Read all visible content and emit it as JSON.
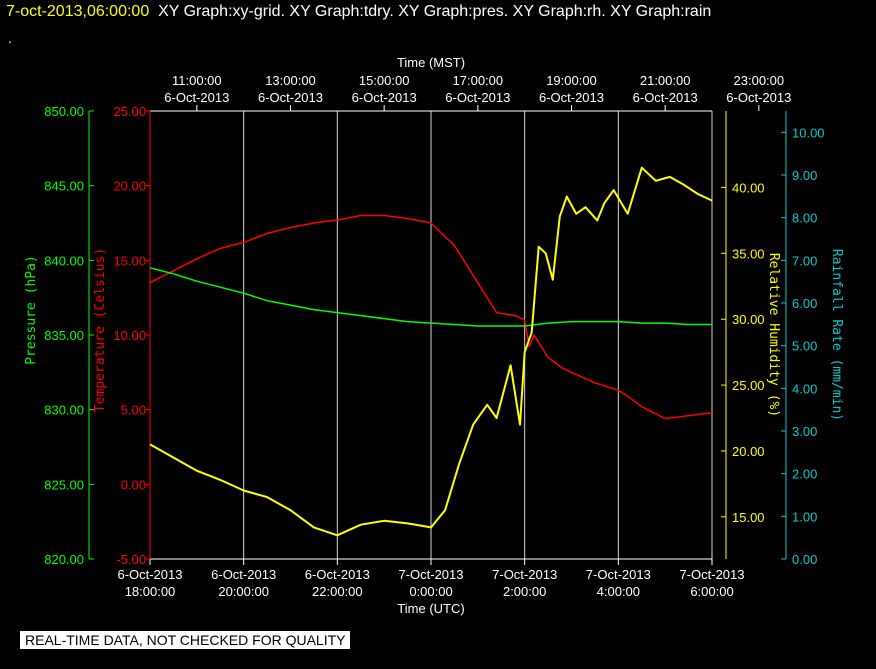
{
  "header": {
    "timestamp": "7-oct-2013,06:00:00",
    "titles": "XY Graph:xy-grid.  XY Graph:tdry.  XY Graph:pres.  XY Graph:rh.  XY Graph:rain",
    "dot": "."
  },
  "footer": {
    "notice": "REAL-TIME DATA, NOT CHECKED FOR QUALITY"
  },
  "colors": {
    "background": "#000000",
    "grid": "#ffffff",
    "pressure": "#00ff00",
    "temperature": "#ff0000",
    "humidity": "#ffff00",
    "rainfall": "#00cccc"
  },
  "chart_data": {
    "type": "line",
    "top_axis": {
      "label": "Time (MST)",
      "ticks": [
        {
          "time": "11:00:00",
          "date": "6-Oct-2013"
        },
        {
          "time": "13:00:00",
          "date": "6-Oct-2013"
        },
        {
          "time": "15:00:00",
          "date": "6-Oct-2013"
        },
        {
          "time": "17:00:00",
          "date": "6-Oct-2013"
        },
        {
          "time": "19:00:00",
          "date": "6-Oct-2013"
        },
        {
          "time": "21:00:00",
          "date": "6-Oct-2013"
        },
        {
          "time": "23:00:00",
          "date": "6-Oct-2013"
        }
      ]
    },
    "bottom_axis": {
      "label": "Time (UTC)",
      "ticks": [
        {
          "date": "6-Oct-2013",
          "time": "18:00:00"
        },
        {
          "date": "6-Oct-2013",
          "time": "20:00:00"
        },
        {
          "date": "6-Oct-2013",
          "time": "22:00:00"
        },
        {
          "date": "7-Oct-2013",
          "time": "0:00:00"
        },
        {
          "date": "7-Oct-2013",
          "time": "2:00:00"
        },
        {
          "date": "7-Oct-2013",
          "time": "4:00:00"
        },
        {
          "date": "7-Oct-2013",
          "time": "6:00:00"
        }
      ],
      "xlim": [
        0,
        12
      ]
    },
    "pressure_axis": {
      "label": "Pressure (hPa)",
      "ylim": [
        820,
        850
      ],
      "ticks": [
        "820.00",
        "825.00",
        "830.00",
        "835.00",
        "840.00",
        "845.00",
        "850.00"
      ]
    },
    "temperature_axis": {
      "label": "Temperature (Celsius)",
      "ylim": [
        -5,
        25
      ],
      "ticks": [
        "-5.00",
        "0.00",
        "5.00",
        "10.00",
        "15.00",
        "20.00",
        "25.00"
      ]
    },
    "humidity_axis": {
      "label": "Relative Humidity (%)",
      "ylim": [
        11.8,
        45.8
      ],
      "ticks": [
        "15.00",
        "20.00",
        "25.00",
        "30.00",
        "35.00",
        "40.00"
      ]
    },
    "rainfall_axis": {
      "label": "Rainfall Rate (mm/min)",
      "ylim": [
        0,
        10.5
      ],
      "ticks": [
        "0.00",
        "1.00",
        "2.00",
        "3.00",
        "4.00",
        "5.00",
        "6.00",
        "7.00",
        "8.00",
        "9.00",
        "10.00"
      ]
    },
    "series": [
      {
        "name": "tdry",
        "axis": "temperature",
        "color": "#ff0000",
        "x": [
          0,
          0.5,
          1,
          1.5,
          2,
          2.5,
          3,
          3.5,
          4,
          4.5,
          5,
          5.5,
          6,
          6.5,
          7,
          7.4,
          7.8,
          8.0,
          8.1,
          8.2,
          8.5,
          8.8,
          9,
          9.5,
          10,
          10.2,
          10.5,
          11,
          11.5,
          12
        ],
        "y": [
          13.5,
          14.3,
          15.1,
          15.8,
          16.2,
          16.8,
          17.2,
          17.5,
          17.7,
          18.0,
          18.0,
          17.8,
          17.5,
          16.0,
          13.5,
          11.5,
          11.3,
          11.0,
          9.2,
          10.0,
          8.5,
          7.8,
          7.5,
          6.8,
          6.3,
          5.9,
          5.2,
          4.4,
          4.6,
          4.8
        ]
      },
      {
        "name": "pres",
        "axis": "pressure",
        "color": "#00ff00",
        "x": [
          0,
          0.5,
          1,
          1.5,
          2,
          2.5,
          3,
          3.5,
          4,
          4.5,
          5,
          5.5,
          6,
          6.5,
          7,
          7.5,
          8,
          8.5,
          9,
          9.5,
          10,
          10.5,
          11,
          11.5,
          12
        ],
        "y": [
          839.5,
          839.1,
          838.6,
          838.2,
          837.8,
          837.3,
          837.0,
          836.7,
          836.5,
          836.3,
          836.1,
          835.9,
          835.8,
          835.7,
          835.6,
          835.6,
          835.6,
          835.8,
          835.9,
          835.9,
          835.9,
          835.8,
          835.8,
          835.7,
          835.7
        ]
      },
      {
        "name": "rh",
        "axis": "humidity",
        "color": "#ffff00",
        "x": [
          0,
          0.5,
          1,
          1.5,
          2,
          2.5,
          3,
          3.5,
          4,
          4.5,
          5,
          5.5,
          6,
          6.3,
          6.6,
          6.9,
          7.2,
          7.4,
          7.7,
          7.9,
          8.0,
          8.15,
          8.3,
          8.45,
          8.6,
          8.75,
          8.9,
          9.1,
          9.3,
          9.55,
          9.7,
          9.9,
          10.2,
          10.5,
          10.8,
          11.1,
          11.4,
          11.7,
          12
        ],
        "y": [
          20.5,
          19.5,
          18.5,
          17.8,
          17.0,
          16.5,
          15.5,
          14.2,
          13.6,
          14.4,
          14.7,
          14.5,
          14.2,
          15.5,
          19.0,
          22.0,
          23.5,
          22.5,
          26.5,
          22.0,
          27.5,
          29.0,
          35.5,
          35.0,
          33.0,
          37.8,
          39.3,
          38.0,
          38.5,
          37.5,
          38.8,
          39.8,
          38.0,
          41.5,
          40.5,
          40.8,
          40.2,
          39.5,
          39.0
        ]
      }
    ]
  }
}
